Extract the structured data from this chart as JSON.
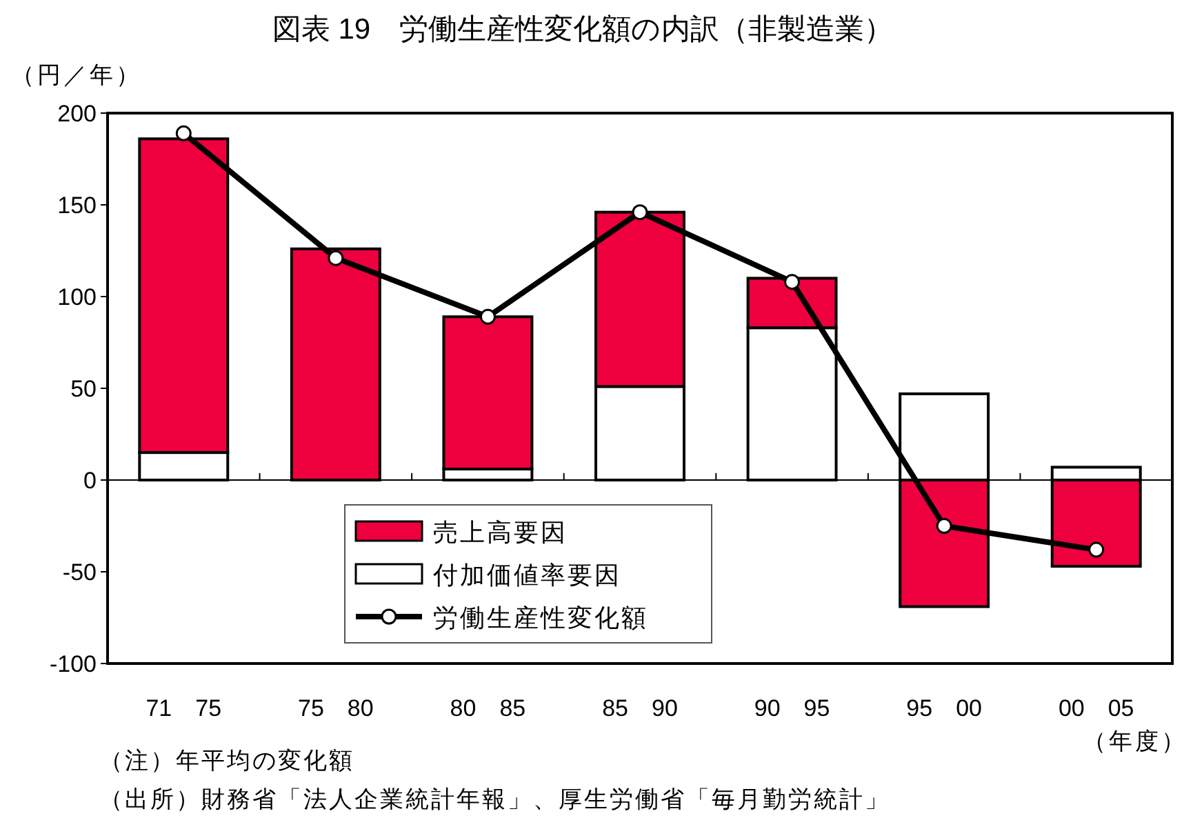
{
  "chart_data": {
    "type": "bar",
    "title": "図表 19　労働生産性変化額の内訳（非製造業）",
    "ylabel": "（円／年）",
    "xlabel": "（年度）",
    "categories": [
      "71　75",
      "75　80",
      "80　85",
      "85　90",
      "90　95",
      "95　00",
      "00　05"
    ],
    "stacked": true,
    "series": [
      {
        "name": "付加価値率要因",
        "color": "#ffffff",
        "values": [
          15,
          0,
          6,
          51,
          83,
          47,
          7
        ]
      },
      {
        "name": "売上高要因",
        "color": "#ee003f",
        "values": [
          171,
          126,
          83,
          95,
          27,
          -69,
          -47
        ]
      },
      {
        "name": "労働生産性変化額",
        "type": "line",
        "color": "#000000",
        "marker": "circle",
        "values": [
          189,
          121,
          89,
          146,
          108,
          -25,
          -38
        ]
      }
    ],
    "ylim": [
      -100,
      200
    ],
    "yticks": [
      -100,
      -50,
      0,
      50,
      100,
      150,
      200
    ],
    "legend": "bottom",
    "annotations": [
      "（注）年平均の変化額",
      "（出所）財務省「法人企業統計年報」、厚生労働省「毎月勤労統計」"
    ]
  }
}
